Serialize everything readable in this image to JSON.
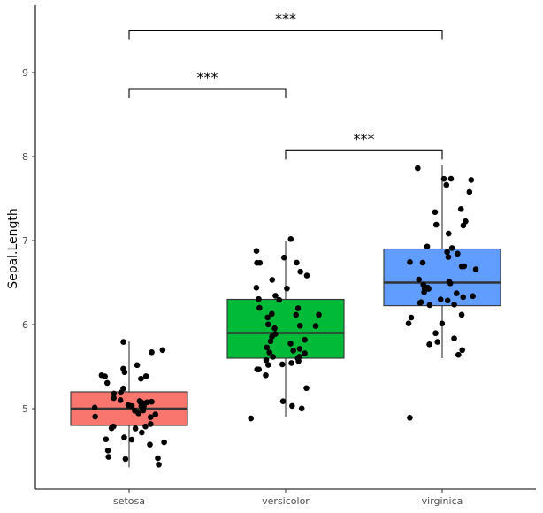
{
  "chart_data": {
    "type": "boxplot",
    "title": "",
    "xlabel": "",
    "ylabel": "Sepal.Length",
    "ylim": [
      4.1,
      9.9
    ],
    "y_ticks": [
      5,
      6,
      7,
      8,
      9
    ],
    "grid": false,
    "legend": "none",
    "categories": [
      "setosa",
      "versicolor",
      "virginica"
    ],
    "colors": [
      "#F8766D",
      "#00BA38",
      "#619CFF"
    ],
    "boxes": [
      {
        "name": "setosa",
        "min": 4.3,
        "q1": 4.8,
        "median": 5.0,
        "q3": 5.2,
        "max": 5.8
      },
      {
        "name": "versicolor",
        "min": 4.9,
        "q1": 5.6,
        "median": 5.9,
        "q3": 6.3,
        "max": 7.0
      },
      {
        "name": "virginica",
        "min": 5.6,
        "q1": 6.225,
        "median": 6.5,
        "q3": 6.9,
        "max": 7.9,
        "outliers": [
          4.9
        ]
      }
    ],
    "points": [
      [
        5.1,
        4.9,
        4.7,
        4.6,
        5.0,
        5.4,
        4.6,
        5.0,
        4.4,
        4.9,
        5.4,
        4.8,
        4.8,
        4.3,
        5.8,
        5.7,
        5.4,
        5.1,
        5.7,
        5.1,
        5.4,
        5.1,
        4.6,
        5.1,
        4.8,
        5.0,
        5.0,
        5.2,
        5.2,
        4.7,
        4.8,
        5.4,
        5.2,
        5.5,
        4.9,
        5.0,
        5.5,
        4.9,
        4.4,
        5.1,
        5.0,
        4.5,
        4.4,
        5.0,
        5.1,
        4.8,
        5.1,
        4.6,
        5.3,
        5.0
      ],
      [
        7.0,
        6.4,
        6.9,
        5.5,
        6.5,
        5.7,
        6.3,
        4.9,
        6.6,
        5.2,
        5.0,
        5.9,
        6.0,
        6.1,
        5.6,
        6.7,
        5.6,
        5.8,
        6.2,
        5.6,
        5.9,
        6.1,
        6.3,
        6.1,
        6.4,
        6.6,
        6.8,
        6.7,
        6.0,
        5.7,
        5.5,
        5.5,
        5.8,
        6.0,
        5.4,
        6.0,
        6.7,
        6.3,
        5.6,
        5.5,
        5.5,
        6.1,
        5.8,
        5.0,
        5.6,
        5.7,
        5.7,
        6.2,
        5.1,
        5.7
      ],
      [
        6.3,
        5.8,
        7.1,
        6.3,
        6.5,
        7.6,
        4.9,
        7.3,
        6.7,
        7.2,
        6.5,
        6.4,
        6.8,
        5.7,
        5.8,
        6.4,
        6.5,
        7.7,
        7.7,
        6.0,
        6.9,
        5.6,
        7.7,
        6.3,
        6.7,
        7.2,
        6.2,
        6.1,
        6.4,
        7.2,
        7.4,
        7.9,
        6.4,
        6.3,
        6.1,
        7.7,
        6.3,
        6.4,
        6.0,
        6.9,
        6.7,
        6.9,
        5.8,
        6.8,
        6.7,
        6.7,
        6.3,
        6.5,
        6.2,
        5.9
      ]
    ],
    "comparisons": [
      {
        "from": "setosa",
        "to": "versicolor",
        "label": "***",
        "y": 8.8
      },
      {
        "from": "setosa",
        "to": "virginica",
        "label": "***",
        "y": 9.5
      },
      {
        "from": "versicolor",
        "to": "virginica",
        "label": "***",
        "y": 8.07
      }
    ]
  }
}
